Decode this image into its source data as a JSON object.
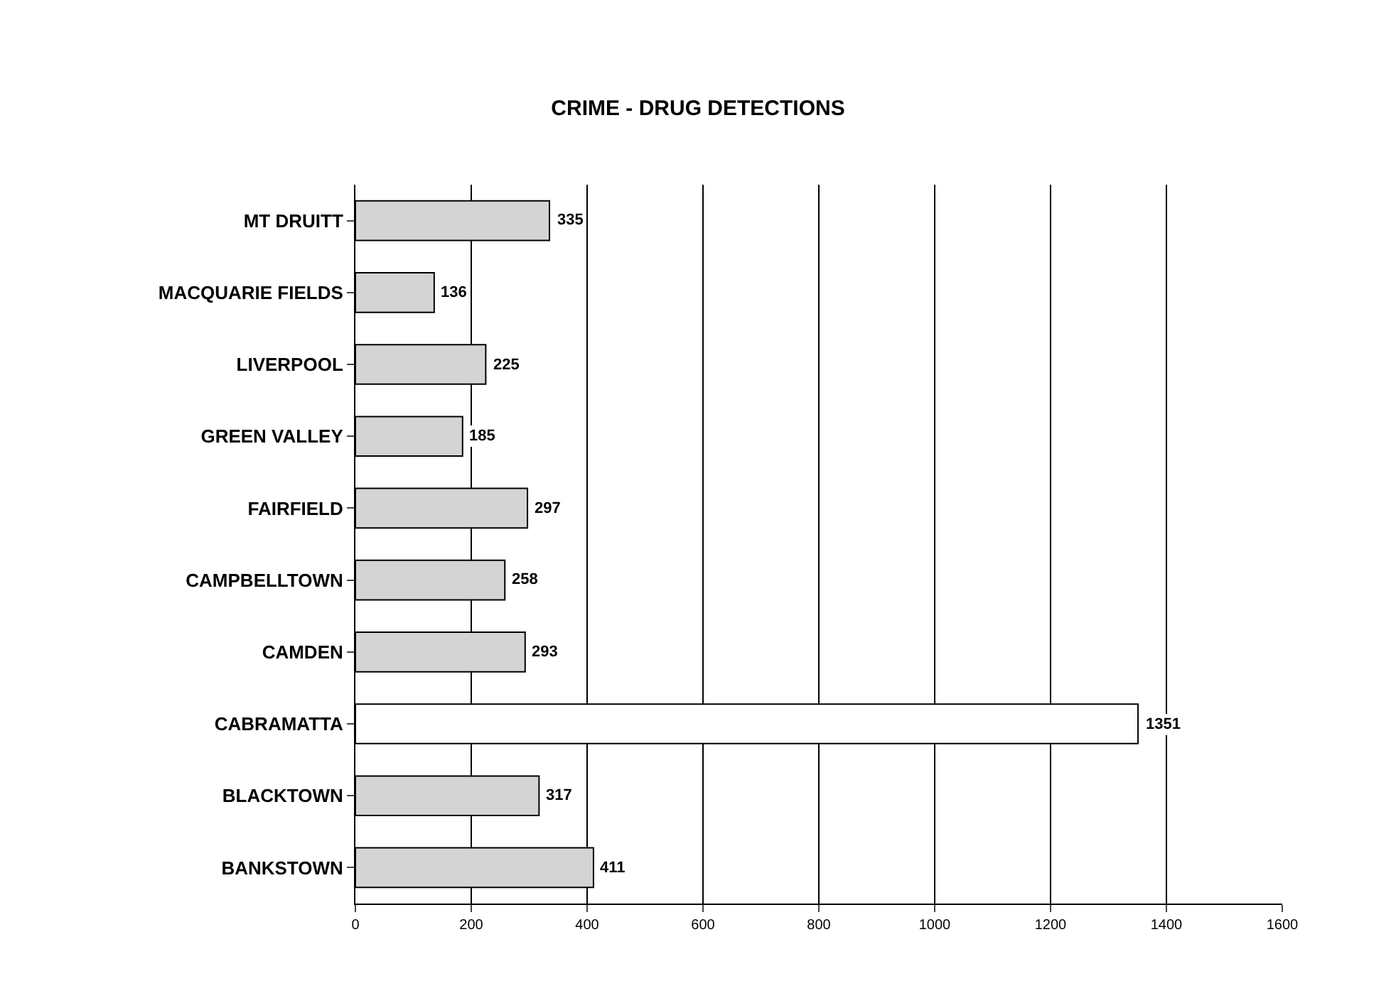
{
  "chart_data": {
    "type": "bar",
    "orientation": "horizontal",
    "title": "CRIME - DRUG DETECTIONS",
    "categories": [
      "MT DRUITT",
      "MACQUARIE FIELDS",
      "LIVERPOOL",
      "GREEN VALLEY",
      "FAIRFIELD",
      "CAMPBELLTOWN",
      "CAMDEN",
      "CABRAMATTA",
      "BLACKTOWN",
      "BANKSTOWN"
    ],
    "values": [
      335,
      136,
      225,
      185,
      297,
      258,
      293,
      1351,
      317,
      411
    ],
    "colors": [
      "#d4d4d4",
      "#d4d4d4",
      "#d4d4d4",
      "#d4d4d4",
      "#d4d4d4",
      "#d4d4d4",
      "#d4d4d4",
      "#ffffff",
      "#d4d4d4",
      "#d4d4d4"
    ],
    "xlim": [
      0,
      1600
    ],
    "xticks": [
      0,
      200,
      400,
      600,
      800,
      1000,
      1200,
      1400,
      1600
    ],
    "grid": "x",
    "data_labels": true
  }
}
